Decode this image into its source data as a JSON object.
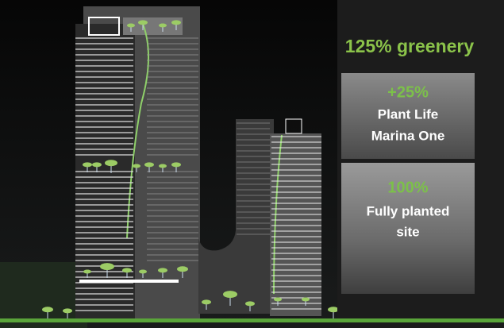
{
  "headline": "125% greenery",
  "panels": [
    {
      "value": "+25%",
      "lines": [
        "Plant Life",
        "Marina One"
      ]
    },
    {
      "value": "100%",
      "lines": [
        "Fully planted",
        "site"
      ]
    }
  ]
}
